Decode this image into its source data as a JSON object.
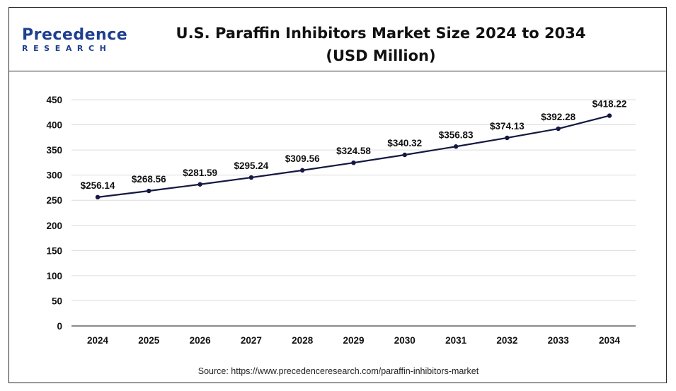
{
  "header": {
    "logo_main": "Precedence",
    "logo_sub": "RESEARCH",
    "title_line1": "U.S. Paraffin Inhibitors Market Size 2024 to 2034",
    "title_line2": "(USD Million)"
  },
  "source_text": "Source: https://www.precedenceresearch.com/paraffin-inhibitors-market",
  "colors": {
    "line": "#141842",
    "logo": "#1f3f8f",
    "grid": "#dcdcdc"
  },
  "chart_data": {
    "type": "line",
    "title": "U.S. Paraffin Inhibitors Market Size 2024 to 2034",
    "subtitle": "(USD Million)",
    "categories": [
      "2024",
      "2025",
      "2026",
      "2027",
      "2028",
      "2029",
      "2030",
      "2031",
      "2032",
      "2033",
      "2034"
    ],
    "series": [
      {
        "values": [
          256.14,
          268.56,
          281.59,
          295.24,
          309.56,
          324.58,
          340.32,
          356.83,
          374.13,
          392.28,
          418.22
        ],
        "labels": [
          "$256.14",
          "$268.56",
          "$281.59",
          "$295.24",
          "$309.56",
          "$324.58",
          "$340.32",
          "$356.83",
          "$374.13",
          "$392.28",
          "$418.22"
        ]
      }
    ],
    "ylim": [
      0,
      450
    ],
    "yticks": [
      "0",
      "50",
      "100",
      "150",
      "200",
      "250",
      "300",
      "350",
      "400",
      "450"
    ],
    "xlabel": "",
    "ylabel": "",
    "grid": "horizontal",
    "legend": "none"
  }
}
